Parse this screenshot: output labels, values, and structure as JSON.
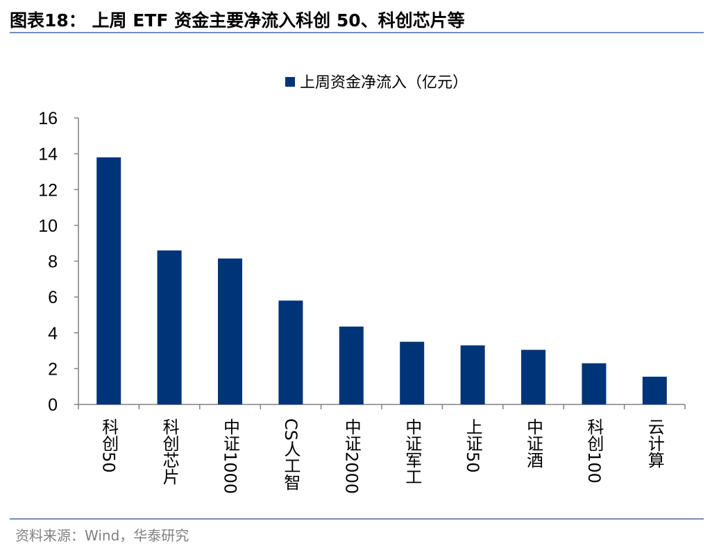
{
  "figure_title": "图表18： 上周 ETF 资金主要净流入科创 50、科创芯片等",
  "source": "资料来源：Wind，华泰研究",
  "colors": {
    "bar": "#003478",
    "axis": "#808080",
    "rule": "#6b8fc4"
  },
  "chart_data": {
    "type": "bar",
    "title": "",
    "xlabel": "",
    "ylabel": "",
    "ylim": [
      0,
      16
    ],
    "yticks": [
      0,
      2,
      4,
      6,
      8,
      10,
      12,
      14,
      16
    ],
    "grid": false,
    "legend_position": "top-center",
    "categories": [
      "科创50",
      "科创芯片",
      "中证1000",
      "CS人工智",
      "中证2000",
      "中证军工",
      "上证50",
      "中证酒",
      "科创100",
      "云计算"
    ],
    "series": [
      {
        "name": "上周资金净流入（亿元）",
        "values": [
          13.8,
          8.6,
          8.15,
          5.8,
          4.35,
          3.5,
          3.3,
          3.05,
          2.3,
          1.55
        ]
      }
    ]
  }
}
